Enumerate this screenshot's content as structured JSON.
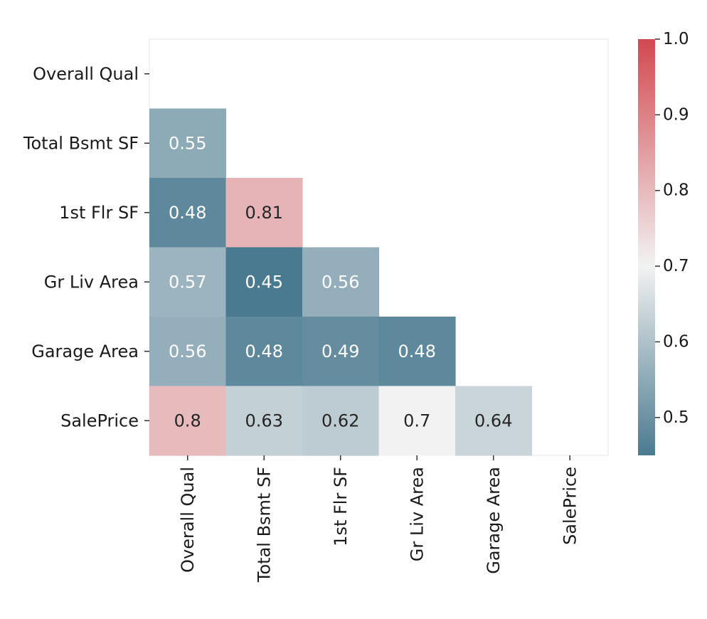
{
  "chart_data": {
    "type": "heatmap",
    "title": "",
    "xlabel": "",
    "ylabel": "",
    "mask": "upper-triangle-and-diagonal",
    "categories": [
      "Overall Qual",
      "Total Bsmt SF",
      "1st Flr SF",
      "Gr Liv Area",
      "Garage Area",
      "SalePrice"
    ],
    "cells": [
      {
        "row": "Total Bsmt SF",
        "col": "Overall Qual",
        "value": 0.55,
        "label": "0.55"
      },
      {
        "row": "1st Flr SF",
        "col": "Overall Qual",
        "value": 0.48,
        "label": "0.48"
      },
      {
        "row": "1st Flr SF",
        "col": "Total Bsmt SF",
        "value": 0.81,
        "label": "0.81"
      },
      {
        "row": "Gr Liv Area",
        "col": "Overall Qual",
        "value": 0.57,
        "label": "0.57"
      },
      {
        "row": "Gr Liv Area",
        "col": "Total Bsmt SF",
        "value": 0.45,
        "label": "0.45"
      },
      {
        "row": "Gr Liv Area",
        "col": "1st Flr SF",
        "value": 0.56,
        "label": "0.56"
      },
      {
        "row": "Garage Area",
        "col": "Overall Qual",
        "value": 0.56,
        "label": "0.56"
      },
      {
        "row": "Garage Area",
        "col": "Total Bsmt SF",
        "value": 0.48,
        "label": "0.48"
      },
      {
        "row": "Garage Area",
        "col": "1st Flr SF",
        "value": 0.49,
        "label": "0.49"
      },
      {
        "row": "Garage Area",
        "col": "Gr Liv Area",
        "value": 0.48,
        "label": "0.48"
      },
      {
        "row": "SalePrice",
        "col": "Overall Qual",
        "value": 0.8,
        "label": "0.8"
      },
      {
        "row": "SalePrice",
        "col": "Total Bsmt SF",
        "value": 0.63,
        "label": "0.63"
      },
      {
        "row": "SalePrice",
        "col": "1st Flr SF",
        "value": 0.62,
        "label": "0.62"
      },
      {
        "row": "SalePrice",
        "col": "Gr Liv Area",
        "value": 0.7,
        "label": "0.7"
      },
      {
        "row": "SalePrice",
        "col": "Garage Area",
        "value": 0.64,
        "label": "0.64"
      }
    ],
    "colorbar": {
      "vmin": 0.45,
      "vmax": 1.0,
      "ticks": [
        "0.5",
        "0.6",
        "0.7",
        "0.8",
        "0.9",
        "1.0"
      ],
      "colormap": "diverging blue-to-red",
      "colors": {
        "low": "#4a7a8f",
        "mid": "#f2f2f2",
        "high": "#d2494f"
      }
    },
    "grid": false,
    "legend": "colorbar-right"
  }
}
